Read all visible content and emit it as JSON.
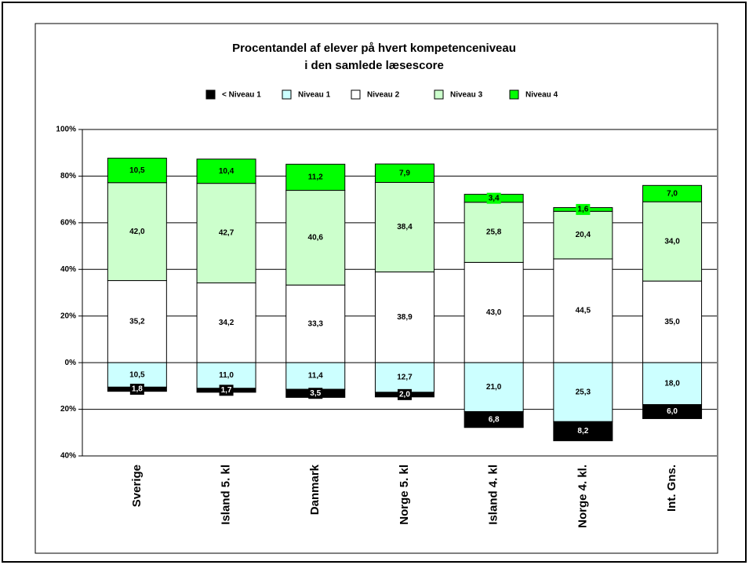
{
  "chart_data": {
    "type": "stacked_bar",
    "title": [
      "Procentandel af elever på hvert kompetenceniveau",
      "i den samlede læsescore"
    ],
    "categories": [
      "Sverige",
      "Island 5. kl",
      "Danmark",
      "Norge 5. kl",
      "Island 4. kl",
      "Norge 4. kl.",
      "Int. Gns."
    ],
    "series": [
      {
        "name": "< Niveau 1",
        "color": "#000000",
        "values": [
          -1.8,
          -1.7,
          -3.5,
          -2.0,
          -6.8,
          -8.2,
          -6.0
        ],
        "value_labels": [
          "1,8",
          "1,7",
          "3,5",
          "2,0",
          "6,8",
          "8,2",
          "6,0"
        ]
      },
      {
        "name": "Niveau 1",
        "color": "#ccffff",
        "values": [
          -10.5,
          -11.0,
          -11.4,
          -12.7,
          -21.0,
          -25.3,
          -18.0
        ],
        "value_labels": [
          "10,5",
          "11,0",
          "11,4",
          "12,7",
          "21,0",
          "25,3",
          "18,0"
        ]
      },
      {
        "name": "Niveau 2",
        "color": "#ffffff",
        "values": [
          35.2,
          34.2,
          33.3,
          38.9,
          43.0,
          44.5,
          35.0
        ],
        "value_labels": [
          "35,2",
          "34,2",
          "33,3",
          "38,9",
          "43,0",
          "44,5",
          "35,0"
        ]
      },
      {
        "name": "Niveau 3",
        "color": "#ccffcc",
        "values": [
          42.0,
          42.7,
          40.6,
          38.4,
          25.8,
          20.4,
          34.0
        ],
        "value_labels": [
          "42,0",
          "42,7",
          "40,6",
          "38,4",
          "25,8",
          "20,4",
          "34,0"
        ]
      },
      {
        "name": "Niveau 4",
        "color": "#00ff00",
        "values": [
          10.5,
          10.4,
          11.2,
          7.9,
          3.4,
          1.6,
          7.0
        ],
        "value_labels": [
          "10,5",
          "10,4",
          "11,2",
          "7,9",
          "3,4",
          "1,6",
          "7,0"
        ]
      }
    ],
    "ylim": [
      -40,
      100
    ],
    "yticks": [
      {
        "value": -40,
        "label": "40%"
      },
      {
        "value": -20,
        "label": "20%"
      },
      {
        "value": 0,
        "label": "0%"
      },
      {
        "value": 20,
        "label": "20%"
      },
      {
        "value": 40,
        "label": "40%"
      },
      {
        "value": 60,
        "label": "60%"
      },
      {
        "value": 80,
        "label": "80%"
      },
      {
        "value": 100,
        "label": "100%"
      }
    ],
    "grid": true
  }
}
